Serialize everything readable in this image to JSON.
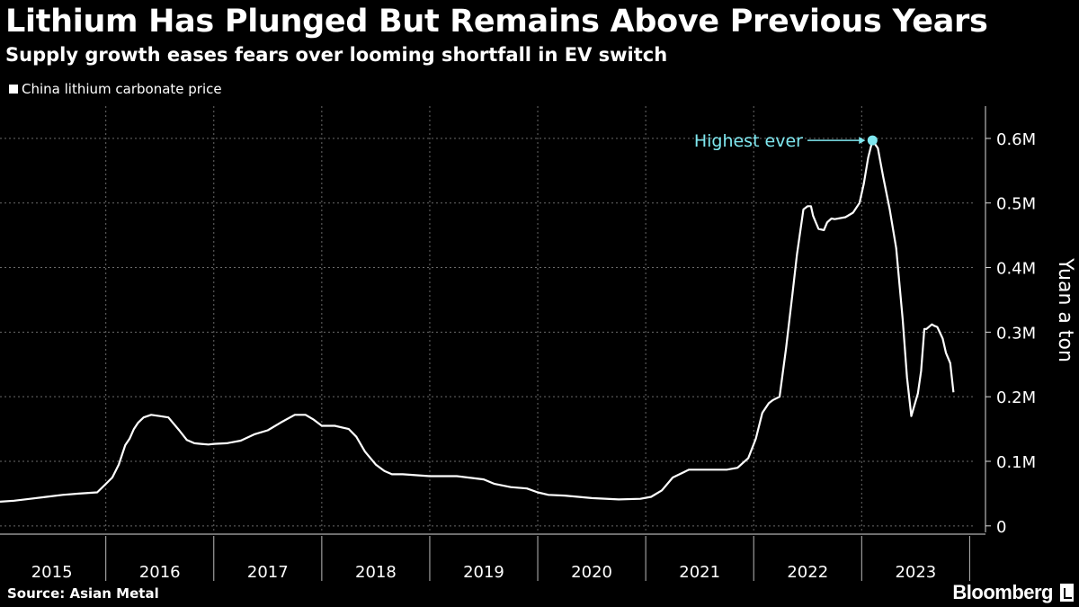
{
  "header": {
    "title": "Lithium Has Plunged But Remains Above Previous Years",
    "subtitle": "Supply growth eases fears over looming shortfall in EV switch"
  },
  "footer": {
    "source": "Source: Asian Metal",
    "brand": "Bloomberg"
  },
  "colors": {
    "background": "#000000",
    "line": "#ffffff",
    "annotation": "#7fe7ef",
    "grid": "#6a6a6a"
  },
  "chart_data": {
    "type": "line",
    "title": "Lithium Has Plunged But Remains Above Previous Years",
    "subtitle": "Supply growth eases fears over looming shortfall in EV switch",
    "xlabel": "",
    "ylabel": "Yuan a ton",
    "legend_position": "top-left",
    "grid": true,
    "xlim": [
      2014.52,
      2023.58
    ],
    "ylim": [
      -10000,
      650000
    ],
    "x_ticks": [
      2015,
      2016,
      2017,
      2018,
      2019,
      2020,
      2021,
      2022,
      2023
    ],
    "x_tick_labels": [
      "2015",
      "2016",
      "2017",
      "2018",
      "2019",
      "2020",
      "2021",
      "2022",
      "2023"
    ],
    "y_ticks": [
      0,
      100000,
      200000,
      300000,
      400000,
      500000,
      600000
    ],
    "y_tick_labels": [
      "0",
      "0.1M",
      "0.2M",
      "0.3M",
      "0.4M",
      "0.5M",
      "0.6M"
    ],
    "series": [
      {
        "name": "China lithium carbonate price",
        "x": [
          2014.52,
          2014.65,
          2014.8,
          2014.95,
          2015.1,
          2015.25,
          2015.42,
          2015.5,
          2015.56,
          2015.62,
          2015.68,
          2015.72,
          2015.76,
          2015.8,
          2015.85,
          2015.92,
          2016.0,
          2016.08,
          2016.12,
          2016.18,
          2016.25,
          2016.32,
          2016.38,
          2016.45,
          2016.5,
          2016.62,
          2016.75,
          2016.88,
          2017.0,
          2017.12,
          2017.25,
          2017.35,
          2017.42,
          2017.5,
          2017.62,
          2017.75,
          2017.82,
          2017.9,
          2018.0,
          2018.08,
          2018.15,
          2018.25,
          2018.5,
          2018.75,
          2019.0,
          2019.1,
          2019.25,
          2019.4,
          2019.5,
          2019.6,
          2019.75,
          2020.0,
          2020.25,
          2020.45,
          2020.55,
          2020.65,
          2020.75,
          2020.9,
          2021.0,
          2021.15,
          2021.25,
          2021.35,
          2021.45,
          2021.52,
          2021.58,
          2021.64,
          2021.68,
          2021.74,
          2021.8,
          2021.86,
          2021.9,
          2021.96,
          2022.0,
          2022.03,
          2022.05,
          2022.1,
          2022.15,
          2022.18,
          2022.22,
          2022.25,
          2022.35,
          2022.42,
          2022.48,
          2022.52,
          2022.56,
          2022.6,
          2022.65,
          2022.7,
          2022.76,
          2022.82,
          2022.88,
          2022.92,
          2022.96,
          2023.02,
          2023.05,
          2023.08,
          2023.1,
          2023.15,
          2023.17,
          2023.2,
          2023.25,
          2023.28,
          2023.32,
          2023.35
        ],
        "values": [
          37500,
          39000,
          42000,
          45000,
          48000,
          50000,
          52000,
          65000,
          75000,
          95000,
          125000,
          135000,
          150000,
          160000,
          168000,
          172000,
          170000,
          168000,
          160000,
          148000,
          133000,
          128000,
          127000,
          126000,
          127000,
          128000,
          132000,
          142000,
          148000,
          160000,
          172000,
          172000,
          165000,
          155000,
          155000,
          150000,
          138000,
          115000,
          95000,
          85000,
          80000,
          80000,
          77000,
          77000,
          72000,
          65000,
          60000,
          58000,
          52000,
          48000,
          47000,
          43000,
          41000,
          42000,
          45000,
          55000,
          75000,
          87000,
          87000,
          87000,
          87000,
          90000,
          105000,
          135000,
          175000,
          190000,
          195000,
          200000,
          275000,
          360000,
          420000,
          490000,
          495000,
          495000,
          480000,
          460000,
          458000,
          470000,
          476000,
          475000,
          478000,
          485000,
          500000,
          530000,
          570000,
          597000,
          585000,
          540000,
          490000,
          430000,
          320000,
          230000,
          170000,
          205000,
          240000,
          305000,
          305000,
          312000,
          310000,
          308000,
          290000,
          268000,
          252000,
          207000
        ]
      }
    ],
    "annotations": [
      {
        "label": "Highest ever",
        "x": 2022.6,
        "y": 597000
      }
    ]
  }
}
